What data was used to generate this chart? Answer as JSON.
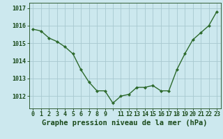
{
  "x": [
    0,
    1,
    2,
    3,
    4,
    5,
    6,
    7,
    8,
    9,
    10,
    11,
    12,
    13,
    14,
    15,
    16,
    17,
    18,
    19,
    20,
    21,
    22,
    23
  ],
  "y": [
    1015.8,
    1015.7,
    1015.3,
    1015.1,
    1014.8,
    1014.4,
    1013.5,
    1012.8,
    1012.3,
    1012.3,
    1011.6,
    1012.0,
    1012.1,
    1012.5,
    1012.5,
    1012.6,
    1012.3,
    1012.3,
    1013.5,
    1014.4,
    1015.2,
    1015.6,
    1016.0,
    1016.8
  ],
  "line_color": "#2d6a2d",
  "marker": "D",
  "marker_size": 2.0,
  "bg_color": "#cce8ee",
  "grid_color": "#a8c8d0",
  "xlabel": "Graphe pression niveau de la mer (hPa)",
  "xlabel_color": "#1a4a1a",
  "xlabel_fontsize": 7.5,
  "tick_color": "#1a4a1a",
  "tick_fontsize": 6,
  "ytick_labels": [
    "1012",
    "1013",
    "1014",
    "1015",
    "1016",
    "1017"
  ],
  "ytick_values": [
    1012,
    1013,
    1014,
    1015,
    1016,
    1017
  ],
  "ylim": [
    1011.3,
    1017.3
  ],
  "xlim": [
    -0.5,
    23.5
  ],
  "xtick_labels": [
    "0",
    "1",
    "2",
    "3",
    "4",
    "5",
    "6",
    "7",
    "8",
    "9",
    "",
    "11",
    "12",
    "13",
    "14",
    "15",
    "16",
    "17",
    "18",
    "19",
    "20",
    "21",
    "22",
    "23"
  ],
  "line_width": 1.0
}
